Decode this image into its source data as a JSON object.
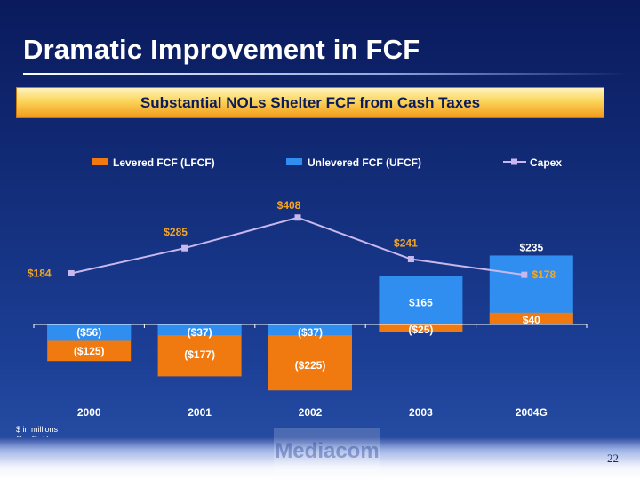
{
  "slide": {
    "title": "Dramatic Improvement in FCF",
    "banner": "Substantial NOLs Shelter FCF from Cash Taxes",
    "note_units": "$ in millions",
    "note_guidance": "G = Guidance",
    "logo_text": "Mediacom",
    "page_number": "22"
  },
  "chart_data": {
    "type": "bar",
    "categories": [
      "2000",
      "2001",
      "2002",
      "2003",
      "2004G"
    ],
    "series": [
      {
        "name": "Levered FCF (LFCF)",
        "kind": "bar",
        "color": "#f07a10",
        "values": [
          -125,
          -177,
          -225,
          -25,
          40
        ],
        "labels": [
          "($125)",
          "($177)",
          "($225)",
          "($25)",
          "$40"
        ]
      },
      {
        "name": "Unlevered FCF (UFCF)",
        "kind": "bar",
        "color": "#2f8ef0",
        "values": [
          -56,
          -37,
          -37,
          165,
          235
        ],
        "labels": [
          "($56)",
          "($37)",
          "($37)",
          "$165",
          "$235"
        ]
      },
      {
        "name": "Capex",
        "kind": "line",
        "color": "#c8b8ee",
        "values": [
          184,
          285,
          408,
          241,
          178
        ],
        "labels": [
          "$184",
          "$285",
          "$408",
          "$241",
          "$178"
        ]
      }
    ],
    "legend_position": "top",
    "grid": false
  }
}
